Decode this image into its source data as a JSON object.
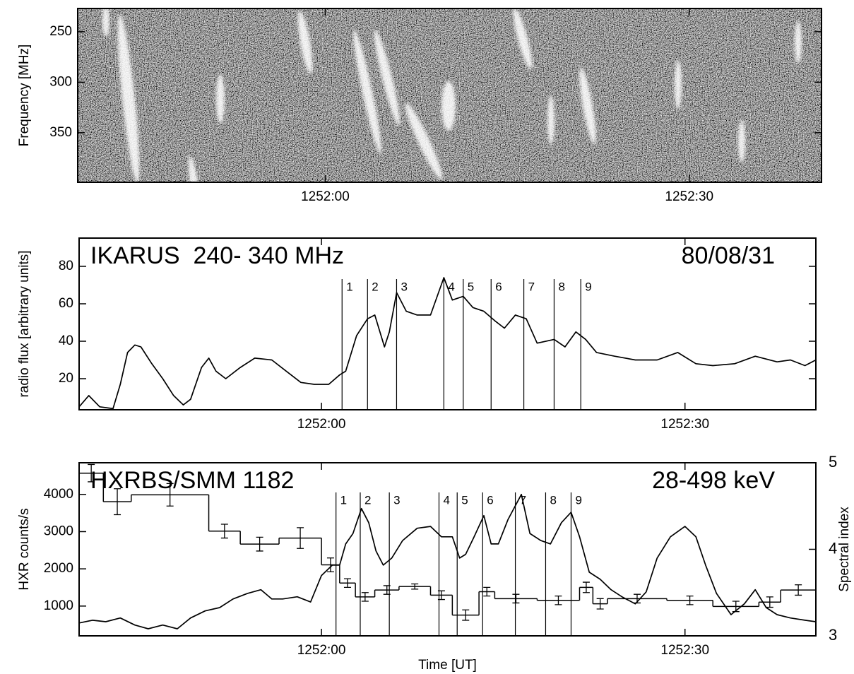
{
  "chart_data": [
    {
      "type": "spectrogram",
      "ylabel": "Frequency [MHz]",
      "xlim": [
        46299.6,
        46360.9
      ],
      "xticks": [
        {
          "value": 46320,
          "label": "1252:00"
        },
        {
          "value": 46350,
          "label": "1252:30"
        }
      ],
      "ylim": [
        399,
        227
      ],
      "yticks": [
        250,
        300,
        350
      ]
    },
    {
      "type": "line",
      "annotations": [
        "IKARUS  240- 340 MHz",
        "80/08/31"
      ],
      "ylabel": "radio flux [arbitrary units]",
      "color": "#000000",
      "xlim": [
        46300.0,
        46360.8
      ],
      "xticks": [
        {
          "value": 46320,
          "label": "1252:00"
        },
        {
          "value": 46350,
          "label": "1252:30"
        }
      ],
      "ylim": [
        3.4,
        95.1
      ],
      "yticks": [
        20,
        40,
        60,
        80
      ],
      "x": [
        46300.0,
        46300.8,
        46301.7,
        46302.8,
        46303.4,
        46304.0,
        46304.6,
        46305.1,
        46306.0,
        46306.9,
        46307.8,
        46308.6,
        46309.2,
        46310.1,
        46310.7,
        46311.3,
        46312.1,
        46313.3,
        46314.5,
        46315.9,
        46317.1,
        46318.3,
        46319.4,
        46320.6,
        46321.5,
        46322.0,
        46322.9,
        46323.8,
        46324.4,
        46325.2,
        46325.6,
        46326.2,
        46327.0,
        46327.9,
        46329.0,
        46330.1,
        46330.8,
        46331.7,
        46332.5,
        46333.4,
        46334.3,
        46335.1,
        46336.0,
        46336.9,
        46337.8,
        46339.2,
        46340.1,
        46341.0,
        46341.8,
        46342.7,
        46344.2,
        46345.9,
        46347.7,
        46349.4,
        46350.9,
        46352.3,
        46354.1,
        46355.8,
        46357.6,
        46358.7,
        46359.9,
        46360.8
      ],
      "values": [
        5,
        11,
        5,
        4,
        17,
        34,
        38,
        37,
        28,
        20,
        11,
        6,
        9,
        26,
        31,
        24,
        20,
        26,
        31,
        30,
        24,
        18,
        17,
        17,
        22,
        24,
        43,
        52,
        54,
        37,
        45,
        66,
        56,
        54,
        54,
        74,
        62,
        64,
        58,
        56,
        51,
        47,
        54,
        52,
        39,
        41,
        37,
        45,
        41,
        34,
        32,
        30,
        30,
        34,
        28,
        27,
        28,
        32,
        29,
        30,
        27,
        30
      ],
      "markers": [
        {
          "value": 46321.7,
          "label": "1"
        },
        {
          "value": 46323.8,
          "label": "2"
        },
        {
          "value": 46326.2,
          "label": "3"
        },
        {
          "value": 46330.1,
          "label": "4"
        },
        {
          "value": 46331.7,
          "label": "5"
        },
        {
          "value": 46334.0,
          "label": "6"
        },
        {
          "value": 46336.7,
          "label": "7"
        },
        {
          "value": 46339.2,
          "label": "8"
        },
        {
          "value": 46341.4,
          "label": "9"
        }
      ]
    },
    {
      "type": "line",
      "annotations": [
        "HXRBS/SMM 1182",
        "28-498 keV"
      ],
      "ylabel": "HXR counts/s",
      "y2label": "Spectral index",
      "xlabel": "Time [UT]",
      "color": "#000000",
      "xlim": [
        46300.0,
        46360.8
      ],
      "xticks": [
        {
          "value": 46320,
          "label": "1252:00"
        },
        {
          "value": 46350,
          "label": "1252:30"
        }
      ],
      "ylim": [
        200,
        4850
      ],
      "yticks": [
        1000,
        2000,
        3000,
        4000
      ],
      "y2lim": [
        3,
        5
      ],
      "y2ticks": [
        3,
        4,
        5
      ],
      "x": [
        46300.0,
        46301.1,
        46302.2,
        46303.4,
        46304.6,
        46305.7,
        46306.9,
        46308.1,
        46309.2,
        46310.4,
        46311.6,
        46312.7,
        46313.9,
        46315.0,
        46315.9,
        46316.8,
        46318.0,
        46319.1,
        46320.0,
        46320.9,
        46321.5,
        46322.0,
        46322.6,
        46323.3,
        46323.9,
        46324.5,
        46325.1,
        46325.8,
        46326.7,
        46327.9,
        46329.0,
        46329.9,
        46330.8,
        46331.4,
        46331.9,
        46332.6,
        46333.4,
        46334.0,
        46334.6,
        46335.4,
        46336.5,
        46337.2,
        46338.1,
        46338.9,
        46339.8,
        46340.6,
        46341.3,
        46342.1,
        46343.0,
        46343.9,
        46344.8,
        46345.9,
        46346.8,
        46347.7,
        46348.8,
        46350.0,
        46350.9,
        46351.7,
        46352.6,
        46353.8,
        46354.9,
        46355.8,
        46356.7,
        46357.6,
        46358.7,
        46359.9,
        46360.8
      ],
      "values": [
        545,
        620,
        580,
        680,
        490,
        390,
        490,
        390,
        680,
        870,
        960,
        1190,
        1340,
        1440,
        1190,
        1190,
        1250,
        1110,
        1820,
        2100,
        2100,
        2670,
        2950,
        3620,
        3240,
        2480,
        2100,
        2290,
        2760,
        3090,
        3140,
        2860,
        2860,
        2290,
        2390,
        2860,
        3430,
        2670,
        2670,
        3330,
        4000,
        2950,
        2760,
        2670,
        3240,
        3520,
        2860,
        1910,
        1720,
        1440,
        1250,
        1060,
        1380,
        2290,
        2860,
        3140,
        2860,
        2100,
        1340,
        770,
        1060,
        1440,
        960,
        770,
        680,
        620,
        580
      ],
      "spectral_index": {
        "axis": "y2",
        "bins": [
          46300.0,
          46302.0,
          46304.3,
          46310.7,
          46313.3,
          46316.5,
          46320.0,
          46321.5,
          46322.8,
          46324.4,
          46326.4,
          46329.0,
          46330.8,
          46333.0,
          46334.3,
          46337.8,
          46341.3,
          46342.4,
          46343.6,
          46348.5,
          46352.3,
          46356.1,
          46357.9,
          46360.8
        ],
        "values": [
          4.88,
          4.55,
          4.63,
          4.21,
          4.06,
          4.13,
          3.82,
          3.61,
          3.45,
          3.53,
          3.57,
          3.47,
          3.24,
          3.51,
          3.43,
          3.41,
          3.56,
          3.37,
          3.43,
          3.41,
          3.34,
          3.39,
          3.53
        ],
        "errors": [
          0.1,
          0.15,
          0.13,
          0.08,
          0.08,
          0.12,
          0.08,
          0.05,
          0.05,
          0.05,
          0.03,
          0.05,
          0.06,
          0.05,
          0.05,
          0.05,
          0.06,
          0.06,
          0.05,
          0.05,
          0.06,
          0.06,
          0.06
        ]
      },
      "markers": [
        {
          "value": 46321.2,
          "label": "1"
        },
        {
          "value": 46323.2,
          "label": "2"
        },
        {
          "value": 46325.6,
          "label": "3"
        },
        {
          "value": 46329.7,
          "label": "4"
        },
        {
          "value": 46331.2,
          "label": "5"
        },
        {
          "value": 46333.3,
          "label": "6"
        },
        {
          "value": 46336.0,
          "label": "7"
        },
        {
          "value": 46338.5,
          "label": "8"
        },
        {
          "value": 46340.6,
          "label": "9"
        }
      ]
    }
  ]
}
